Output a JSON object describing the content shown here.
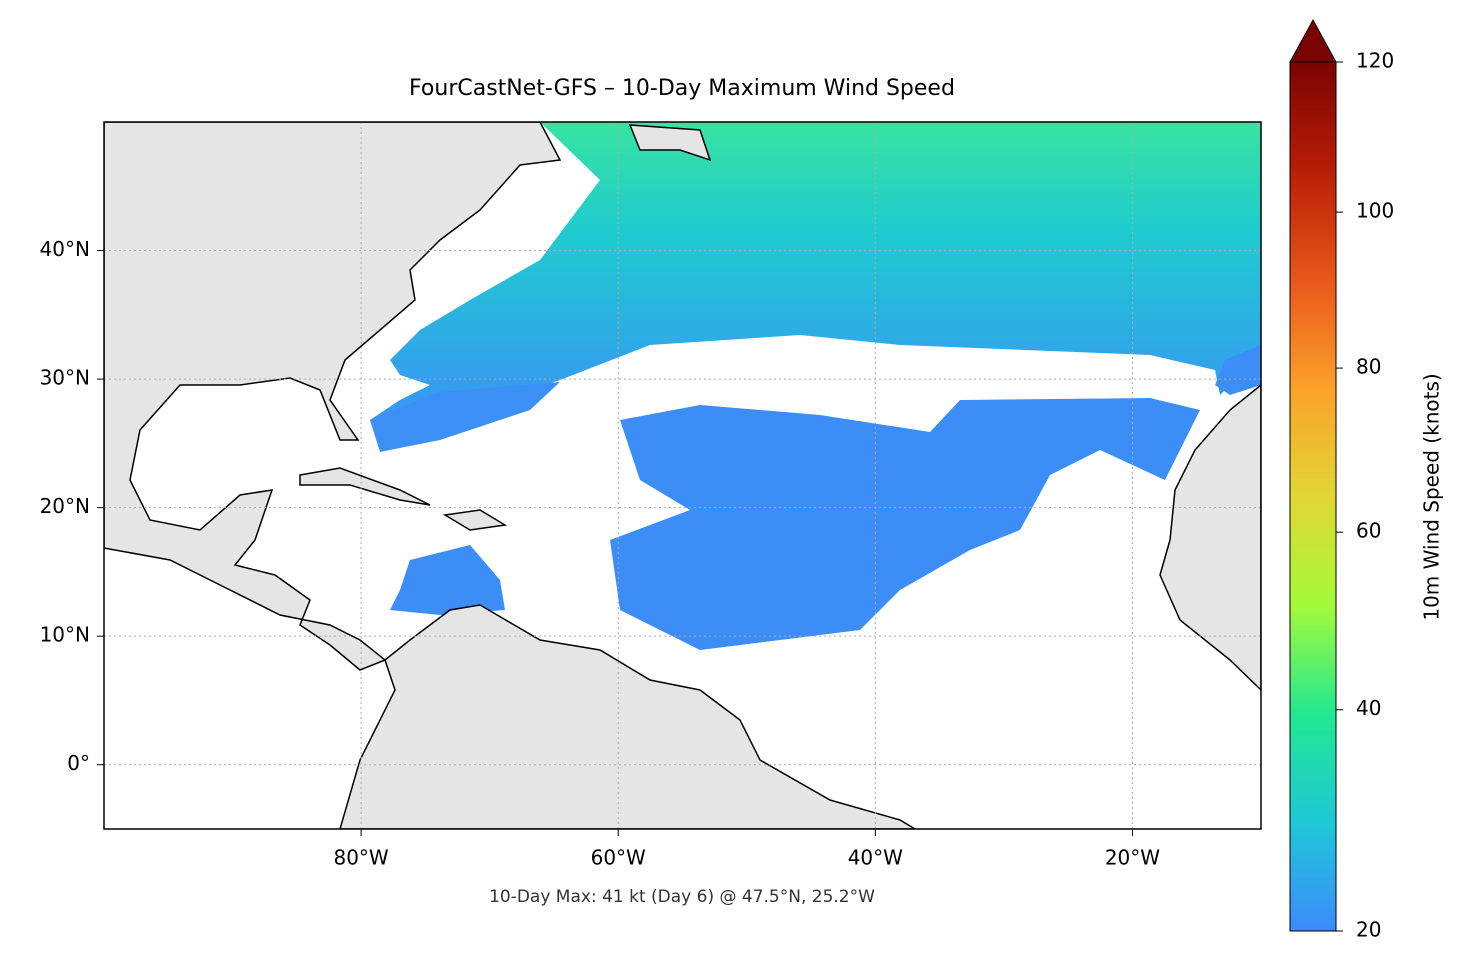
{
  "map": {
    "title": "FourCastNet-GFS – 10-Day Maximum Wind Speed",
    "annotation": "10-Day Max: 41 kt (Day 6) @ 47.5°N, 25.2°W",
    "lonlim": [
      -100,
      -10
    ],
    "latlim": [
      -5,
      50
    ],
    "lon_ticks": [
      {
        "value": -80,
        "label": "80°W"
      },
      {
        "value": -60,
        "label": "60°W"
      },
      {
        "value": -40,
        "label": "40°W"
      },
      {
        "value": -20,
        "label": "20°W"
      }
    ],
    "lat_ticks": [
      {
        "value": 0,
        "label": "0°"
      },
      {
        "value": 10,
        "label": "10°N"
      },
      {
        "value": 20,
        "label": "20°N"
      },
      {
        "value": 30,
        "label": "30°N"
      },
      {
        "value": 40,
        "label": "40°N"
      }
    ],
    "grid": true,
    "colorbar": {
      "label": "10m Wind Speed (knots)",
      "lim": [
        20,
        120
      ],
      "ticks": [
        20,
        40,
        60,
        80,
        100,
        120
      ],
      "colors": [
        "#3d8afc",
        "#1ec8d6",
        "#22e890",
        "#a4fa3a",
        "#e2d635",
        "#fba12a",
        "#e8561a",
        "#b81e06",
        "#7a0403"
      ]
    }
  }
}
